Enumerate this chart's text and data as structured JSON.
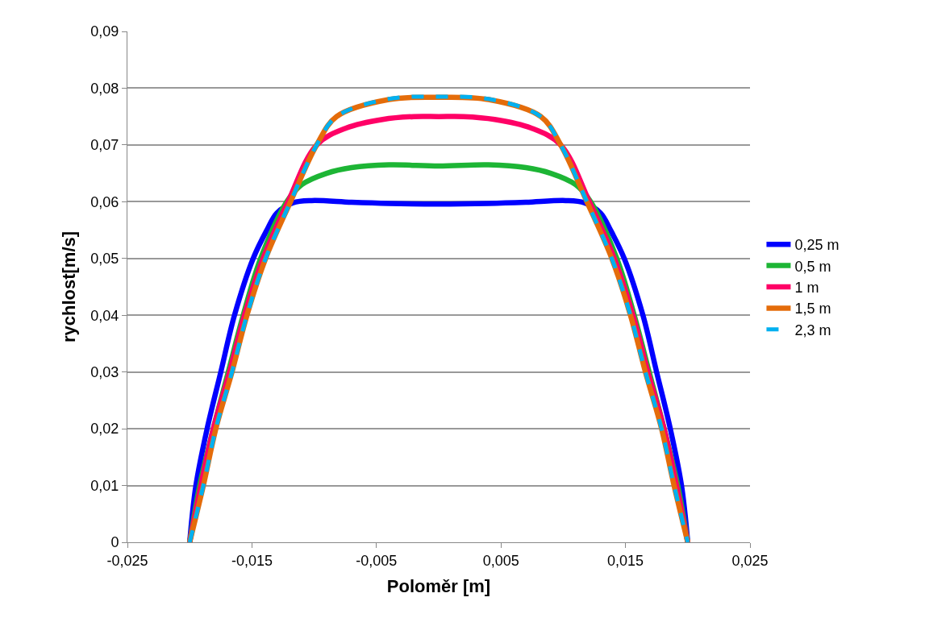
{
  "chart_data": {
    "type": "line",
    "xlabel": "Poloměr [m]",
    "ylabel": "rychlost[m/s]",
    "xlim": [
      -0.025,
      0.025
    ],
    "xticks": [
      {
        "value": -0.025,
        "label": "-0,025"
      },
      {
        "value": -0.015,
        "label": "-0,015"
      },
      {
        "value": -0.005,
        "label": "-0,005"
      },
      {
        "value": 0.005,
        "label": "0,005"
      },
      {
        "value": 0.015,
        "label": "0,015"
      },
      {
        "value": 0.025,
        "label": "0,025"
      }
    ],
    "ylim": [
      0,
      0.09
    ],
    "yticks": [
      0,
      {
        "value": 0.01,
        "label": "0,01"
      },
      {
        "value": 0.02,
        "label": "0,02"
      },
      {
        "value": 0.03,
        "label": "0,03"
      },
      {
        "value": 0.04,
        "label": "0,04"
      },
      {
        "value": 0.05,
        "label": "0,05"
      },
      {
        "value": 0.06,
        "label": "0,06"
      },
      {
        "value": 0.07,
        "label": "0,07"
      },
      {
        "value": 0.08,
        "label": "0,08"
      },
      {
        "value": 0.09,
        "label": "0,09"
      }
    ],
    "grid": "y",
    "legend": "right",
    "marker": "none",
    "series": [
      {
        "name": "0,25 m",
        "color": "#0000ff",
        "line_style": "solid",
        "x": [
          -0.02,
          -0.0195,
          -0.0186,
          -0.0175,
          -0.0164,
          -0.0149,
          -0.0138,
          -0.013,
          -0.0117,
          -0.0102,
          -0.007,
          -0.004,
          0,
          0.004,
          0.007,
          0.0102,
          0.0117,
          0.013,
          0.0138,
          0.0149,
          0.0164,
          0.0175,
          0.0186,
          0.0195,
          0.02
        ],
        "values": [
          0,
          0.01,
          0.02,
          0.03,
          0.04,
          0.05,
          0.055,
          0.058,
          0.0598,
          0.0602,
          0.0599,
          0.0597,
          0.0596,
          0.0597,
          0.0599,
          0.0602,
          0.0598,
          0.058,
          0.055,
          0.05,
          0.04,
          0.03,
          0.02,
          0.01,
          0
        ]
      },
      {
        "name": "0,5 m",
        "color": "#1db535",
        "line_style": "solid",
        "x": [
          -0.02,
          -0.0192,
          -0.0181,
          -0.0169,
          -0.0157,
          -0.0143,
          -0.0122,
          -0.011,
          -0.009,
          -0.007,
          -0.004,
          0,
          0.004,
          0.007,
          0.009,
          0.011,
          0.0122,
          0.0143,
          0.0157,
          0.0169,
          0.0181,
          0.0192,
          0.02
        ],
        "values": [
          0,
          0.01,
          0.02,
          0.03,
          0.04,
          0.05,
          0.06,
          0.063,
          0.065,
          0.066,
          0.0665,
          0.0663,
          0.0665,
          0.066,
          0.065,
          0.063,
          0.06,
          0.05,
          0.04,
          0.03,
          0.02,
          0.01,
          0
        ]
      },
      {
        "name": "1 m",
        "color": "#ff0066",
        "line_style": "solid",
        "x": [
          -0.02,
          -0.0191,
          -0.0181,
          -0.0168,
          -0.0156,
          -0.0141,
          -0.0121,
          -0.0098,
          -0.0074,
          -0.0045,
          -0.002,
          0,
          0.002,
          0.0045,
          0.0074,
          0.0098,
          0.0121,
          0.0141,
          0.0156,
          0.0168,
          0.0181,
          0.0191,
          0.02
        ],
        "values": [
          0,
          0.01,
          0.02,
          0.03,
          0.04,
          0.05,
          0.06,
          0.07,
          0.073,
          0.0745,
          0.075,
          0.075,
          0.075,
          0.0745,
          0.073,
          0.07,
          0.06,
          0.05,
          0.04,
          0.03,
          0.02,
          0.01,
          0
        ]
      },
      {
        "name": "1,5 m",
        "color": "#e46c0a",
        "line_style": "solid",
        "x": [
          -0.02,
          -0.0189,
          -0.0179,
          -0.0166,
          -0.0154,
          -0.0139,
          -0.0119,
          -0.0098,
          -0.0082,
          -0.004,
          0,
          0.004,
          0.0082,
          0.0098,
          0.0119,
          0.0139,
          0.0154,
          0.0166,
          0.0179,
          0.0189,
          0.02
        ],
        "values": [
          0,
          0.01,
          0.02,
          0.03,
          0.04,
          0.05,
          0.06,
          0.07,
          0.075,
          0.078,
          0.0784,
          0.078,
          0.075,
          0.07,
          0.06,
          0.05,
          0.04,
          0.03,
          0.02,
          0.01,
          0
        ]
      },
      {
        "name": "2,3 m",
        "color": "#00b0f0",
        "line_style": "dashed",
        "x": [
          -0.02,
          -0.0189,
          -0.0179,
          -0.0166,
          -0.0154,
          -0.0139,
          -0.0119,
          -0.0098,
          -0.0082,
          -0.004,
          0,
          0.004,
          0.0082,
          0.0098,
          0.0119,
          0.0139,
          0.0154,
          0.0166,
          0.0179,
          0.0189,
          0.02
        ],
        "values": [
          0,
          0.01,
          0.02,
          0.03,
          0.04,
          0.05,
          0.06,
          0.07,
          0.075,
          0.0781,
          0.0785,
          0.0781,
          0.075,
          0.07,
          0.06,
          0.05,
          0.04,
          0.03,
          0.02,
          0.01,
          0
        ]
      }
    ]
  }
}
